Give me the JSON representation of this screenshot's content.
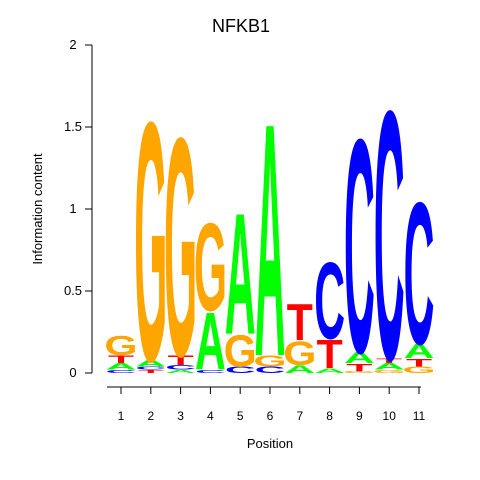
{
  "chart_data": {
    "type": "sequence-logo",
    "title": "NFKB1",
    "xlabel": "Position",
    "ylabel": "Information content",
    "ylim": [
      0,
      2
    ],
    "yticks": [
      0,
      0.5,
      1,
      1.5,
      2
    ],
    "ytick_labels": [
      "0",
      "0.5",
      "1",
      "1.5",
      "2"
    ],
    "positions": [
      "1",
      "2",
      "3",
      "4",
      "5",
      "6",
      "7",
      "8",
      "9",
      "10",
      "11"
    ],
    "colors": {
      "A": "#00ff00",
      "C": "#0000ff",
      "G": "#ffa500",
      "T": "#ff0000"
    },
    "stacks": [
      [
        {
          "letter": "C",
          "height": 0.02
        },
        {
          "letter": "A",
          "height": 0.04
        },
        {
          "letter": "T",
          "height": 0.05
        },
        {
          "letter": "G",
          "height": 0.12
        }
      ],
      [
        {
          "letter": "T",
          "height": 0.02
        },
        {
          "letter": "C",
          "height": 0.02
        },
        {
          "letter": "A",
          "height": 0.04
        },
        {
          "letter": "G",
          "height": 1.5
        }
      ],
      [
        {
          "letter": "A",
          "height": 0.02
        },
        {
          "letter": "C",
          "height": 0.03
        },
        {
          "letter": "T",
          "height": 0.06
        },
        {
          "letter": "G",
          "height": 1.37
        }
      ],
      [
        {
          "letter": "C",
          "height": 0.02
        },
        {
          "letter": "A",
          "height": 0.36
        },
        {
          "letter": "G",
          "height": 0.55
        }
      ],
      [
        {
          "letter": "C",
          "height": 0.04
        },
        {
          "letter": "G",
          "height": 0.2
        },
        {
          "letter": "A",
          "height": 0.76
        }
      ],
      [
        {
          "letter": "C",
          "height": 0.04
        },
        {
          "letter": "G",
          "height": 0.07
        },
        {
          "letter": "A",
          "height": 1.46
        }
      ],
      [
        {
          "letter": "A",
          "height": 0.05
        },
        {
          "letter": "G",
          "height": 0.15
        },
        {
          "letter": "T",
          "height": 0.23
        }
      ],
      [
        {
          "letter": "A",
          "height": 0.03
        },
        {
          "letter": "T",
          "height": 0.18
        },
        {
          "letter": "C",
          "height": 0.48
        }
      ],
      [
        {
          "letter": "G",
          "height": 0.01
        },
        {
          "letter": "T",
          "height": 0.05
        },
        {
          "letter": "A",
          "height": 0.07
        },
        {
          "letter": "C",
          "height": 1.34
        }
      ],
      [
        {
          "letter": "G",
          "height": 0.02
        },
        {
          "letter": "A",
          "height": 0.04
        },
        {
          "letter": "T",
          "height": 0.03
        },
        {
          "letter": "C",
          "height": 1.56
        }
      ],
      [
        {
          "letter": "G",
          "height": 0.04
        },
        {
          "letter": "T",
          "height": 0.05
        },
        {
          "letter": "A",
          "height": 0.09
        },
        {
          "letter": "C",
          "height": 0.89
        }
      ]
    ]
  }
}
